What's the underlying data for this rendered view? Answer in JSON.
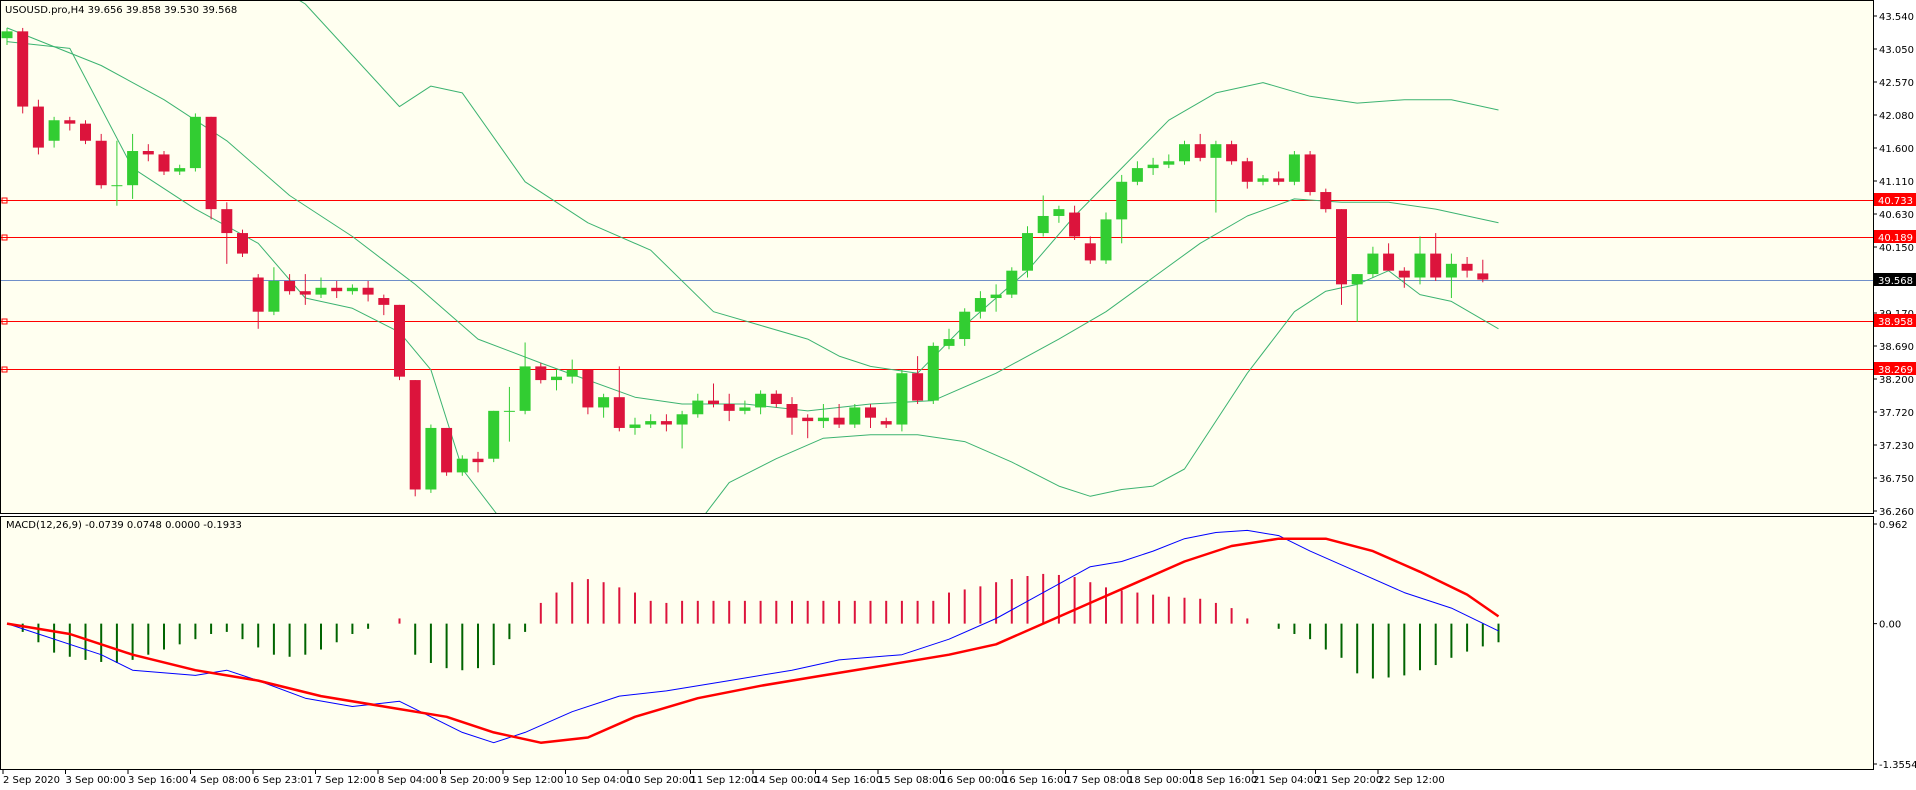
{
  "header": {
    "symbol_line": "USOUSD.pro,H4  39.656 39.858 39.530 39.568",
    "macd_line": "MACD(12,26,9) -0.0739 0.0748 0.0000 -0.1933"
  },
  "colors": {
    "background": "#fffff0",
    "bull": "#32cd32",
    "bear": "#dc143c",
    "bands": "#3cb371",
    "macd_line": "#0000ff",
    "signal_line": "#ff0000",
    "level_line": "#ff0000",
    "bid_line": "#6f8fc9"
  },
  "price_axis": {
    "ticks": [
      "43.540",
      "43.050",
      "42.570",
      "42.080",
      "41.600",
      "41.110",
      "40.630",
      "40.150",
      "39.660",
      "39.170",
      "38.690",
      "38.200",
      "37.720",
      "37.230",
      "36.750",
      "36.260"
    ],
    "min": 36.2,
    "max": 43.6
  },
  "levels": [
    {
      "label": "40.733",
      "value": 40.733
    },
    {
      "label": "40.189",
      "value": 40.189
    },
    {
      "label": "38.958",
      "value": 38.958
    },
    {
      "label": "38.269",
      "value": 38.269
    }
  ],
  "current_price": {
    "label": "39.568",
    "value": 39.568
  },
  "macd_axis": {
    "ticks": [
      "0.962",
      "0.00",
      "-1.3554"
    ],
    "min": -1.3554,
    "max": 0.962
  },
  "time_axis": {
    "labels": [
      "2 Sep 2020",
      "3 Sep 00:00",
      "3 Sep 16:00",
      "4 Sep 08:00",
      "6 Sep 23:01",
      "7 Sep 12:00",
      "8 Sep 04:00",
      "8 Sep 20:00",
      "9 Sep 12:00",
      "10 Sep 04:00",
      "10 Sep 20:00",
      "11 Sep 12:00",
      "14 Sep 00:00",
      "14 Sep 16:00",
      "15 Sep 08:00",
      "16 Sep 00:00",
      "16 Sep 16:00",
      "17 Sep 08:00",
      "18 Sep 00:00",
      "18 Sep 16:00",
      "21 Sep 04:00",
      "21 Sep 20:00",
      "22 Sep 12:00"
    ]
  },
  "chart_data": {
    "type": "candlestick",
    "title": "USOUSD.pro,H4",
    "candles": [
      {
        "o": 43.1,
        "h": 43.25,
        "l": 43.0,
        "c": 43.2
      },
      {
        "o": 43.2,
        "h": 43.25,
        "l": 42.0,
        "c": 42.1
      },
      {
        "o": 42.1,
        "h": 42.2,
        "l": 41.4,
        "c": 41.5
      },
      {
        "o": 41.6,
        "h": 41.95,
        "l": 41.5,
        "c": 41.9
      },
      {
        "o": 41.9,
        "h": 41.95,
        "l": 41.75,
        "c": 41.85
      },
      {
        "o": 41.85,
        "h": 41.9,
        "l": 41.55,
        "c": 41.6
      },
      {
        "o": 41.6,
        "h": 41.7,
        "l": 40.9,
        "c": 40.95
      },
      {
        "o": 40.95,
        "h": 41.6,
        "l": 40.65,
        "c": 40.95
      },
      {
        "o": 40.95,
        "h": 41.7,
        "l": 40.75,
        "c": 41.45
      },
      {
        "o": 41.45,
        "h": 41.55,
        "l": 41.3,
        "c": 41.4
      },
      {
        "o": 41.4,
        "h": 41.45,
        "l": 41.1,
        "c": 41.15
      },
      {
        "o": 41.15,
        "h": 41.25,
        "l": 41.1,
        "c": 41.2
      },
      {
        "o": 41.2,
        "h": 42.0,
        "l": 41.15,
        "c": 41.95
      },
      {
        "o": 41.95,
        "h": 41.95,
        "l": 40.45,
        "c": 40.6
      },
      {
        "o": 40.6,
        "h": 40.7,
        "l": 39.8,
        "c": 40.25
      },
      {
        "o": 40.25,
        "h": 40.3,
        "l": 39.9,
        "c": 39.95
      },
      {
        "o": 39.6,
        "h": 39.65,
        "l": 38.85,
        "c": 39.1
      },
      {
        "o": 39.1,
        "h": 39.75,
        "l": 39.05,
        "c": 39.55
      },
      {
        "o": 39.55,
        "h": 39.65,
        "l": 39.35,
        "c": 39.4
      },
      {
        "o": 39.4,
        "h": 39.65,
        "l": 39.2,
        "c": 39.35
      },
      {
        "o": 39.35,
        "h": 39.6,
        "l": 39.3,
        "c": 39.45
      },
      {
        "o": 39.45,
        "h": 39.55,
        "l": 39.3,
        "c": 39.4
      },
      {
        "o": 39.4,
        "h": 39.5,
        "l": 39.35,
        "c": 39.45
      },
      {
        "o": 39.45,
        "h": 39.55,
        "l": 39.25,
        "c": 39.35
      },
      {
        "o": 39.3,
        "h": 39.35,
        "l": 39.05,
        "c": 39.2
      },
      {
        "o": 39.2,
        "h": 39.2,
        "l": 38.1,
        "c": 38.15
      },
      {
        "o": 38.1,
        "h": 38.1,
        "l": 36.4,
        "c": 36.5
      },
      {
        "o": 36.5,
        "h": 37.45,
        "l": 36.45,
        "c": 37.4
      },
      {
        "o": 37.4,
        "h": 37.4,
        "l": 36.7,
        "c": 36.75
      },
      {
        "o": 36.75,
        "h": 37.0,
        "l": 36.7,
        "c": 36.95
      },
      {
        "o": 36.95,
        "h": 37.05,
        "l": 36.75,
        "c": 36.9
      },
      {
        "o": 36.95,
        "h": 37.65,
        "l": 36.9,
        "c": 37.65
      },
      {
        "o": 37.65,
        "h": 38.0,
        "l": 37.2,
        "c": 37.65
      },
      {
        "o": 37.65,
        "h": 38.65,
        "l": 37.6,
        "c": 38.3
      },
      {
        "o": 38.3,
        "h": 38.35,
        "l": 38.05,
        "c": 38.1
      },
      {
        "o": 38.1,
        "h": 38.25,
        "l": 37.95,
        "c": 38.15
      },
      {
        "o": 38.15,
        "h": 38.4,
        "l": 38.05,
        "c": 38.25
      },
      {
        "o": 38.25,
        "h": 38.25,
        "l": 37.6,
        "c": 37.7
      },
      {
        "o": 37.7,
        "h": 37.9,
        "l": 37.55,
        "c": 37.85
      },
      {
        "o": 37.85,
        "h": 38.3,
        "l": 37.35,
        "c": 37.4
      },
      {
        "o": 37.4,
        "h": 37.55,
        "l": 37.3,
        "c": 37.45
      },
      {
        "o": 37.45,
        "h": 37.6,
        "l": 37.4,
        "c": 37.5
      },
      {
        "o": 37.5,
        "h": 37.6,
        "l": 37.35,
        "c": 37.45
      },
      {
        "o": 37.45,
        "h": 37.65,
        "l": 37.1,
        "c": 37.6
      },
      {
        "o": 37.6,
        "h": 37.9,
        "l": 37.55,
        "c": 37.8
      },
      {
        "o": 37.8,
        "h": 38.05,
        "l": 37.7,
        "c": 37.75
      },
      {
        "o": 37.75,
        "h": 37.9,
        "l": 37.5,
        "c": 37.65
      },
      {
        "o": 37.65,
        "h": 37.8,
        "l": 37.6,
        "c": 37.7
      },
      {
        "o": 37.7,
        "h": 37.95,
        "l": 37.6,
        "c": 37.9
      },
      {
        "o": 37.9,
        "h": 37.95,
        "l": 37.7,
        "c": 37.75
      },
      {
        "o": 37.75,
        "h": 37.85,
        "l": 37.3,
        "c": 37.55
      },
      {
        "o": 37.55,
        "h": 37.6,
        "l": 37.25,
        "c": 37.5
      },
      {
        "o": 37.5,
        "h": 37.75,
        "l": 37.4,
        "c": 37.55
      },
      {
        "o": 37.55,
        "h": 37.75,
        "l": 37.4,
        "c": 37.45
      },
      {
        "o": 37.45,
        "h": 37.75,
        "l": 37.4,
        "c": 37.7
      },
      {
        "o": 37.7,
        "h": 37.75,
        "l": 37.4,
        "c": 37.55
      },
      {
        "o": 37.5,
        "h": 37.55,
        "l": 37.4,
        "c": 37.45
      },
      {
        "o": 37.45,
        "h": 38.25,
        "l": 37.35,
        "c": 38.2
      },
      {
        "o": 38.2,
        "h": 38.45,
        "l": 37.75,
        "c": 37.8
      },
      {
        "o": 37.8,
        "h": 38.65,
        "l": 37.75,
        "c": 38.6
      },
      {
        "o": 38.6,
        "h": 38.85,
        "l": 38.55,
        "c": 38.7
      },
      {
        "o": 38.7,
        "h": 39.15,
        "l": 38.6,
        "c": 39.1
      },
      {
        "o": 39.1,
        "h": 39.4,
        "l": 39.0,
        "c": 39.3
      },
      {
        "o": 39.3,
        "h": 39.5,
        "l": 39.1,
        "c": 39.35
      },
      {
        "o": 39.35,
        "h": 39.75,
        "l": 39.3,
        "c": 39.7
      },
      {
        "o": 39.7,
        "h": 40.35,
        "l": 39.6,
        "c": 40.25
      },
      {
        "o": 40.25,
        "h": 40.8,
        "l": 40.2,
        "c": 40.5
      },
      {
        "o": 40.5,
        "h": 40.65,
        "l": 40.4,
        "c": 40.6
      },
      {
        "o": 40.55,
        "h": 40.65,
        "l": 40.15,
        "c": 40.2
      },
      {
        "o": 40.1,
        "h": 40.2,
        "l": 39.8,
        "c": 39.85
      },
      {
        "o": 39.85,
        "h": 40.55,
        "l": 39.8,
        "c": 40.45
      },
      {
        "o": 40.45,
        "h": 41.1,
        "l": 40.1,
        "c": 41.0
      },
      {
        "o": 41.0,
        "h": 41.3,
        "l": 40.95,
        "c": 41.2
      },
      {
        "o": 41.2,
        "h": 41.35,
        "l": 41.1,
        "c": 41.25
      },
      {
        "o": 41.25,
        "h": 41.4,
        "l": 41.2,
        "c": 41.3
      },
      {
        "o": 41.3,
        "h": 41.6,
        "l": 41.25,
        "c": 41.55
      },
      {
        "o": 41.55,
        "h": 41.7,
        "l": 41.3,
        "c": 41.35
      },
      {
        "o": 41.35,
        "h": 41.6,
        "l": 40.55,
        "c": 41.55
      },
      {
        "o": 41.55,
        "h": 41.6,
        "l": 41.25,
        "c": 41.3
      },
      {
        "o": 41.3,
        "h": 41.35,
        "l": 40.9,
        "c": 41.0
      },
      {
        "o": 41.0,
        "h": 41.1,
        "l": 40.95,
        "c": 41.05
      },
      {
        "o": 41.05,
        "h": 41.15,
        "l": 40.95,
        "c": 41.0
      },
      {
        "o": 41.0,
        "h": 41.45,
        "l": 40.95,
        "c": 41.4
      },
      {
        "o": 41.4,
        "h": 41.45,
        "l": 40.8,
        "c": 40.85
      },
      {
        "o": 40.85,
        "h": 40.9,
        "l": 40.55,
        "c": 40.6
      },
      {
        "o": 40.6,
        "h": 40.6,
        "l": 39.2,
        "c": 39.5
      },
      {
        "o": 39.5,
        "h": 39.65,
        "l": 38.95,
        "c": 39.65
      },
      {
        "o": 39.65,
        "h": 40.05,
        "l": 39.6,
        "c": 39.95
      },
      {
        "o": 39.95,
        "h": 40.1,
        "l": 39.7,
        "c": 39.7
      },
      {
        "o": 39.7,
        "h": 39.75,
        "l": 39.45,
        "c": 39.6
      },
      {
        "o": 39.6,
        "h": 40.2,
        "l": 39.5,
        "c": 39.95
      },
      {
        "o": 39.95,
        "h": 40.25,
        "l": 39.55,
        "c": 39.6
      },
      {
        "o": 39.6,
        "h": 39.95,
        "l": 39.3,
        "c": 39.8
      },
      {
        "o": 39.8,
        "h": 39.9,
        "l": 39.6,
        "c": 39.7
      },
      {
        "o": 39.66,
        "h": 39.86,
        "l": 39.53,
        "c": 39.57
      }
    ],
    "bands": {
      "upper": [
        [
          0,
          45.6
        ],
        [
          14,
          44.3
        ],
        [
          19,
          43.6
        ],
        [
          25,
          42.1
        ],
        [
          27,
          42.4
        ],
        [
          29,
          42.3
        ],
        [
          33,
          41.0
        ],
        [
          37,
          40.4
        ],
        [
          41,
          40.0
        ],
        [
          45,
          39.1
        ],
        [
          48,
          38.9
        ],
        [
          51,
          38.7
        ],
        [
          53,
          38.45
        ],
        [
          55,
          38.3
        ],
        [
          58,
          38.2
        ],
        [
          61,
          38.9
        ],
        [
          65,
          39.7
        ],
        [
          68,
          40.5
        ],
        [
          71,
          41.2
        ],
        [
          74,
          41.9
        ],
        [
          77,
          42.3
        ],
        [
          80,
          42.45
        ],
        [
          83,
          42.25
        ],
        [
          86,
          42.15
        ],
        [
          89,
          42.2
        ],
        [
          92,
          42.2
        ],
        [
          95,
          42.05
        ]
      ],
      "middle": [
        [
          0,
          43.25
        ],
        [
          6,
          42.7
        ],
        [
          10,
          42.2
        ],
        [
          14,
          41.6
        ],
        [
          18,
          40.8
        ],
        [
          22,
          40.2
        ],
        [
          26,
          39.5
        ],
        [
          30,
          38.7
        ],
        [
          34,
          38.35
        ],
        [
          37,
          38.1
        ],
        [
          40,
          37.85
        ],
        [
          43,
          37.75
        ],
        [
          47,
          37.75
        ],
        [
          51,
          37.65
        ],
        [
          55,
          37.75
        ],
        [
          59,
          37.8
        ],
        [
          63,
          38.2
        ],
        [
          67,
          38.7
        ],
        [
          70,
          39.1
        ],
        [
          73,
          39.6
        ],
        [
          76,
          40.1
        ],
        [
          79,
          40.5
        ],
        [
          82,
          40.75
        ],
        [
          85,
          40.7
        ],
        [
          88,
          40.7
        ],
        [
          91,
          40.6
        ],
        [
          95,
          40.4
        ]
      ],
      "lower": [
        [
          0,
          43.05
        ],
        [
          4,
          42.95
        ],
        [
          8,
          41.2
        ],
        [
          12,
          40.6
        ],
        [
          16,
          40.1
        ],
        [
          19,
          39.3
        ],
        [
          22,
          39.15
        ],
        [
          25,
          38.8
        ],
        [
          27,
          38.25
        ],
        [
          29,
          36.8
        ],
        [
          31,
          36.2
        ],
        [
          35,
          35.0
        ],
        [
          40,
          35.3
        ],
        [
          44,
          36.0
        ],
        [
          46,
          36.6
        ],
        [
          49,
          36.95
        ],
        [
          52,
          37.25
        ],
        [
          55,
          37.3
        ],
        [
          58,
          37.3
        ],
        [
          61,
          37.2
        ],
        [
          64,
          36.9
        ],
        [
          67,
          36.55
        ],
        [
          69,
          36.4
        ],
        [
          71,
          36.5
        ],
        [
          73,
          36.55
        ],
        [
          75,
          36.8
        ],
        [
          77,
          37.5
        ],
        [
          79,
          38.2
        ],
        [
          82,
          39.1
        ],
        [
          84,
          39.4
        ],
        [
          86,
          39.5
        ],
        [
          88,
          39.7
        ],
        [
          90,
          39.35
        ],
        [
          92,
          39.25
        ],
        [
          95,
          38.85
        ]
      ]
    },
    "macd": {
      "histogram": [
        0.0,
        -0.08,
        -0.18,
        -0.28,
        -0.32,
        -0.35,
        -0.37,
        -0.38,
        -0.35,
        -0.3,
        -0.25,
        -0.2,
        -0.15,
        -0.1,
        -0.08,
        -0.15,
        -0.23,
        -0.3,
        -0.32,
        -0.3,
        -0.25,
        -0.18,
        -0.1,
        -0.05,
        0.0,
        0.05,
        -0.3,
        -0.38,
        -0.43,
        -0.45,
        -0.43,
        -0.4,
        -0.15,
        -0.08,
        0.2,
        0.3,
        0.4,
        0.43,
        0.4,
        0.35,
        0.3,
        0.22,
        0.2,
        0.22,
        0.22,
        0.22,
        0.22,
        0.22,
        0.22,
        0.22,
        0.22,
        0.22,
        0.22,
        0.22,
        0.22,
        0.22,
        0.22,
        0.22,
        0.22,
        0.22,
        0.3,
        0.33,
        0.36,
        0.4,
        0.43,
        0.46,
        0.48,
        0.47,
        0.45,
        0.4,
        0.35,
        0.32,
        0.3,
        0.28,
        0.26,
        0.25,
        0.24,
        0.2,
        0.15,
        0.05,
        0.0,
        -0.05,
        -0.1,
        -0.15,
        -0.25,
        -0.33,
        -0.48,
        -0.53,
        -0.52,
        -0.5,
        -0.45,
        -0.4,
        -0.33,
        -0.27,
        -0.22,
        -0.18
      ],
      "macd_line": [
        [
          0,
          0.0
        ],
        [
          6,
          -0.3
        ],
        [
          8,
          -0.45
        ],
        [
          12,
          -0.5
        ],
        [
          14,
          -0.45
        ],
        [
          16,
          -0.55
        ],
        [
          19,
          -0.72
        ],
        [
          22,
          -0.8
        ],
        [
          25,
          -0.75
        ],
        [
          27,
          -0.9
        ],
        [
          29,
          -1.05
        ],
        [
          31,
          -1.15
        ],
        [
          33,
          -1.05
        ],
        [
          36,
          -0.85
        ],
        [
          39,
          -0.7
        ],
        [
          42,
          -0.65
        ],
        [
          46,
          -0.55
        ],
        [
          50,
          -0.45
        ],
        [
          53,
          -0.35
        ],
        [
          57,
          -0.3
        ],
        [
          60,
          -0.15
        ],
        [
          63,
          0.05
        ],
        [
          66,
          0.3
        ],
        [
          69,
          0.55
        ],
        [
          71,
          0.6
        ],
        [
          73,
          0.7
        ],
        [
          75,
          0.82
        ],
        [
          77,
          0.88
        ],
        [
          79,
          0.9
        ],
        [
          81,
          0.85
        ],
        [
          83,
          0.7
        ],
        [
          86,
          0.5
        ],
        [
          89,
          0.3
        ],
        [
          92,
          0.15
        ],
        [
          95,
          -0.07
        ]
      ],
      "signal_line": [
        [
          0,
          0.0
        ],
        [
          4,
          -0.1
        ],
        [
          8,
          -0.3
        ],
        [
          12,
          -0.45
        ],
        [
          16,
          -0.55
        ],
        [
          20,
          -0.7
        ],
        [
          24,
          -0.8
        ],
        [
          28,
          -0.9
        ],
        [
          31,
          -1.05
        ],
        [
          34,
          -1.15
        ],
        [
          37,
          -1.1
        ],
        [
          40,
          -0.9
        ],
        [
          44,
          -0.72
        ],
        [
          48,
          -0.6
        ],
        [
          52,
          -0.5
        ],
        [
          56,
          -0.4
        ],
        [
          60,
          -0.3
        ],
        [
          63,
          -0.2
        ],
        [
          66,
          0.0
        ],
        [
          69,
          0.2
        ],
        [
          72,
          0.4
        ],
        [
          75,
          0.6
        ],
        [
          78,
          0.75
        ],
        [
          81,
          0.82
        ],
        [
          84,
          0.82
        ],
        [
          87,
          0.7
        ],
        [
          90,
          0.5
        ],
        [
          93,
          0.28
        ],
        [
          95,
          0.07
        ]
      ]
    }
  }
}
